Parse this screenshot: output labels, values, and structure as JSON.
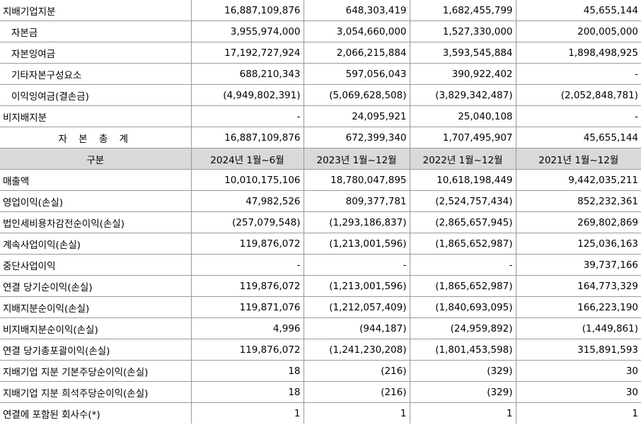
{
  "balance_rows": [
    {
      "label": "지배기업지분",
      "values": [
        "16,887,109,876",
        "648,303,419",
        "1,682,455,799",
        "45,655,144"
      ]
    },
    {
      "label": "자본금",
      "values": [
        "3,955,974,000",
        "3,054,660,000",
        "1,527,330,000",
        "200,005,000"
      ]
    },
    {
      "label": "자본잉여금",
      "values": [
        "17,192,727,924",
        "2,066,215,884",
        "3,593,545,884",
        "1,898,498,925"
      ]
    },
    {
      "label": "기타자본구성요소",
      "values": [
        "688,210,343",
        "597,056,043",
        "390,922,402",
        "-"
      ]
    },
    {
      "label": "이익잉여금(결손금)",
      "values": [
        "(4,949,802,391)",
        "(5,069,628,508)",
        "(3,829,342,487)",
        "(2,052,848,781)"
      ]
    },
    {
      "label": "비지배지분",
      "values": [
        "-",
        "24,095,921",
        "25,040,108",
        "-"
      ]
    },
    {
      "label": "자 본 총 계",
      "values": [
        "16,887,109,876",
        "672,399,340",
        "1,707,495,907",
        "45,655,144"
      ]
    }
  ],
  "header": {
    "label": "구분",
    "periods": [
      "2024년 1월~6월",
      "2023년 1월~12월",
      "2022년 1월~12월",
      "2021년 1월~12월"
    ]
  },
  "income_rows": [
    {
      "label": "매출액",
      "values": [
        "10,010,175,106",
        "18,780,047,895",
        "10,618,198,449",
        "9,442,035,211"
      ]
    },
    {
      "label": "영업이익(손실)",
      "values": [
        "47,982,526",
        "809,377,781",
        "(2,524,757,434)",
        "852,232,361"
      ]
    },
    {
      "label": "법인세비용차감전순이익(손실)",
      "values": [
        "(257,079,548)",
        "(1,293,186,837)",
        "(2,865,657,945)",
        "269,802,869"
      ]
    },
    {
      "label": "계속사업이익(손실)",
      "values": [
        "119,876,072",
        "(1,213,001,596)",
        "(1,865,652,987)",
        "125,036,163"
      ]
    },
    {
      "label": "중단사업이익",
      "values": [
        "-",
        "-",
        "-",
        "39,737,166"
      ]
    },
    {
      "label": "연결 당기순이익(손실)",
      "values": [
        "119,876,072",
        "(1,213,001,596)",
        "(1,865,652,987)",
        "164,773,329"
      ]
    },
    {
      "label": "지배지분순이익(손실)",
      "values": [
        "119,871,076",
        "(1,212,057,409)",
        "(1,840,693,095)",
        "166,223,190"
      ]
    },
    {
      "label": "비지배지분순이익(손실)",
      "values": [
        "4,996",
        "(944,187)",
        "(24,959,892)",
        "(1,449,861)"
      ]
    },
    {
      "label": "연결 당기총포괄이익(손실)",
      "values": [
        "119,876,072",
        "(1,241,230,208)",
        "(1,801,453,598)",
        "315,891,593"
      ]
    },
    {
      "label": "지배기업 지분 기본주당순이익(손실)",
      "values": [
        "18",
        "(216)",
        "(329)",
        "30"
      ]
    },
    {
      "label": "지배기업 지분 희석주당순이익(손실)",
      "values": [
        "18",
        "(216)",
        "(329)",
        "30"
      ]
    },
    {
      "label": "연결에 포함된 회사수(*)",
      "values": [
        "1",
        "1",
        "1",
        "1"
      ]
    }
  ]
}
